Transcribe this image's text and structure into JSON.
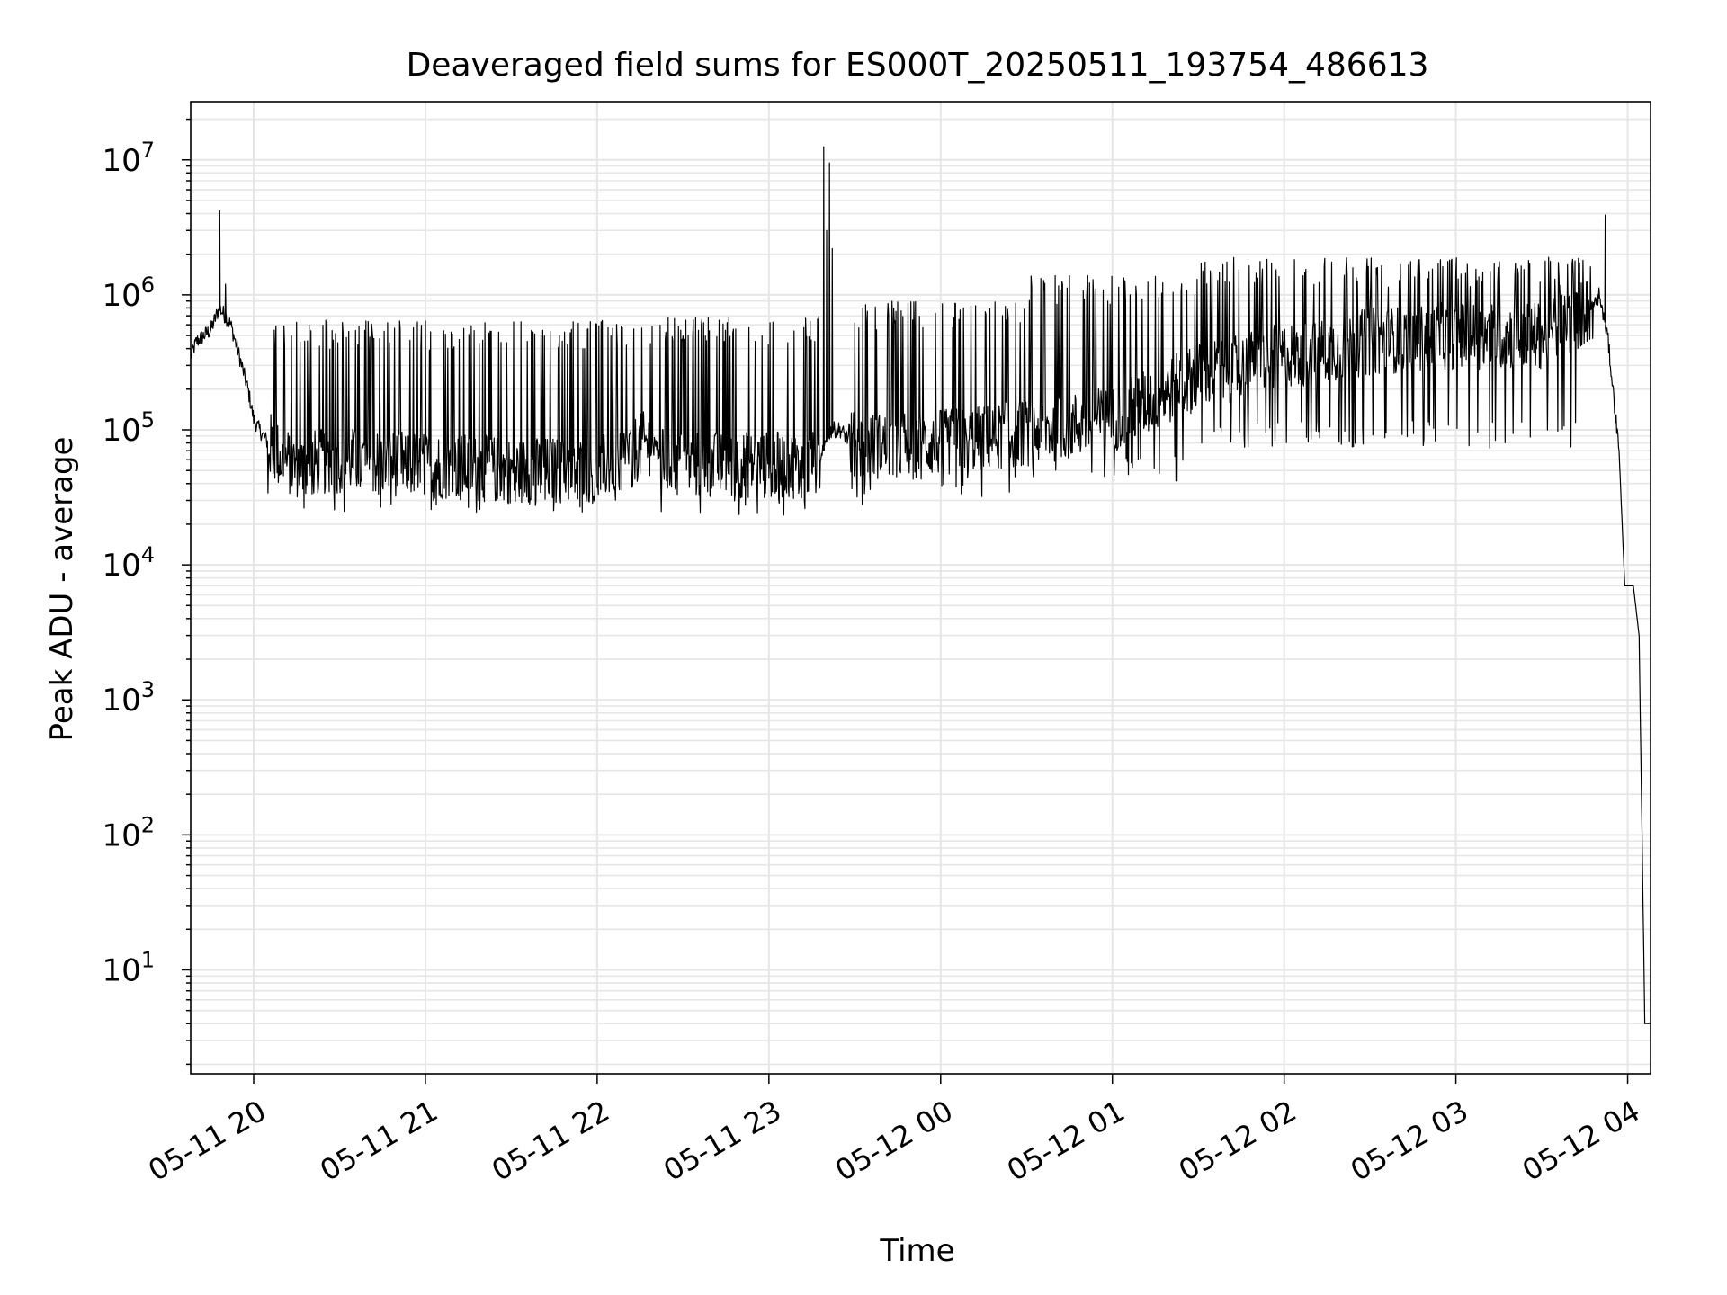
{
  "chart_data": {
    "type": "line",
    "title": "Deaveraged field sums for ES000T_20250511_193754_486613",
    "xlabel": "Time",
    "ylabel": "Peak ADU - average",
    "yscale": "log",
    "ylim": [
      1.7,
      27000000
    ],
    "xlim": [
      "2025-05-11 19:38:00",
      "2025-05-12 04:08:00"
    ],
    "x_tick_labels": [
      "05-11 20",
      "05-11 21",
      "05-11 22",
      "05-11 23",
      "05-12 00",
      "05-12 01",
      "05-12 02",
      "05-12 03",
      "05-12 04"
    ],
    "x_ticks": [
      "2025-05-11 20:00",
      "2025-05-11 21:00",
      "2025-05-11 22:00",
      "2025-05-11 23:00",
      "2025-05-12 00:00",
      "2025-05-12 01:00",
      "2025-05-12 02:00",
      "2025-05-12 03:00",
      "2025-05-12 04:00"
    ],
    "y_ticks": [
      10,
      100,
      1000,
      10000,
      100000,
      1000000,
      10000000
    ],
    "y_tick_base": "10",
    "y_tick_exponents": [
      "1",
      "2",
      "3",
      "4",
      "5",
      "6",
      "7"
    ],
    "grid": true,
    "grid_minor": true,
    "line_color": "#000000",
    "grid_color": "#e6e6e6",
    "series": [
      {
        "x": [
          "2025-05-11 19:38",
          "2025-05-11 19:40",
          "2025-05-11 19:45",
          "2025-05-11 19:48",
          "2025-05-11 19:50",
          "2025-05-11 19:52",
          "2025-05-11 19:55",
          "2025-05-11 19:58",
          "2025-05-11 20:00",
          "2025-05-11 20:02",
          "2025-05-11 20:05",
          "2025-05-11 20:10",
          "2025-05-11 20:15",
          "2025-05-11 20:30",
          "2025-05-11 21:00",
          "2025-05-11 21:30",
          "2025-05-11 22:00",
          "2025-05-11 22:20",
          "2025-05-11 22:22",
          "2025-05-11 22:30",
          "2025-05-11 23:00",
          "2025-05-11 23:18",
          "2025-05-11 23:20",
          "2025-05-11 23:22",
          "2025-05-11 23:25",
          "2025-05-11 23:30",
          "2025-05-12 00:00",
          "2025-05-12 00:30",
          "2025-05-12 01:00",
          "2025-05-12 01:30",
          "2025-05-12 02:00",
          "2025-05-12 02:30",
          "2025-05-12 03:00",
          "2025-05-12 03:30",
          "2025-05-12 03:48",
          "2025-05-12 03:50",
          "2025-05-12 03:53",
          "2025-05-12 03:57",
          "2025-05-12 03:59",
          "2025-05-12 04:02",
          "2025-05-12 04:04",
          "2025-05-12 04:06",
          "2025-05-12 04:07"
        ],
        "y": [
          350000,
          450000,
          550000,
          800000,
          700000,
          600000,
          350000,
          200000,
          120000,
          100000,
          80000,
          60000,
          55000,
          60000,
          55000,
          50000,
          50000,
          85000,
          60000,
          55000,
          55000,
          55000,
          90000,
          100000,
          100000,
          75000,
          80000,
          95000,
          120000,
          250000,
          350000,
          450000,
          500000,
          500000,
          800000,
          1000000,
          500000,
          70000,
          7000,
          7000,
          3000,
          4,
          4
        ]
      }
    ],
    "noise": {
      "segments": [
        {
          "start": "2025-05-11 20:05",
          "end": "2025-05-11 22:20",
          "spike_top": 650000,
          "low": 30000
        },
        {
          "start": "2025-05-11 22:22",
          "end": "2025-05-11 23:18",
          "spike_top": 700000,
          "low": 28000
        },
        {
          "start": "2025-05-11 23:28",
          "end": "2025-05-12 00:30",
          "spike_top": 900000,
          "low": 35000
        },
        {
          "start": "2025-05-12 00:30",
          "end": "2025-05-12 01:30",
          "spike_top": 1400000,
          "low": 50000
        },
        {
          "start": "2025-05-12 01:30",
          "end": "2025-05-12 03:48",
          "spike_top": 1900000,
          "low": 90000
        }
      ]
    },
    "spikes": [
      {
        "x": "2025-05-11 19:48",
        "y": 4200000
      },
      {
        "x": "2025-05-11 19:50",
        "y": 1200000
      },
      {
        "x": "2025-05-11 23:19",
        "y": 12500000
      },
      {
        "x": "2025-05-11 23:20",
        "y": 3000000
      },
      {
        "x": "2025-05-11 23:21",
        "y": 9500000
      },
      {
        "x": "2025-05-11 23:22",
        "y": 2200000
      },
      {
        "x": "2025-05-12 03:52",
        "y": 3900000
      }
    ]
  }
}
